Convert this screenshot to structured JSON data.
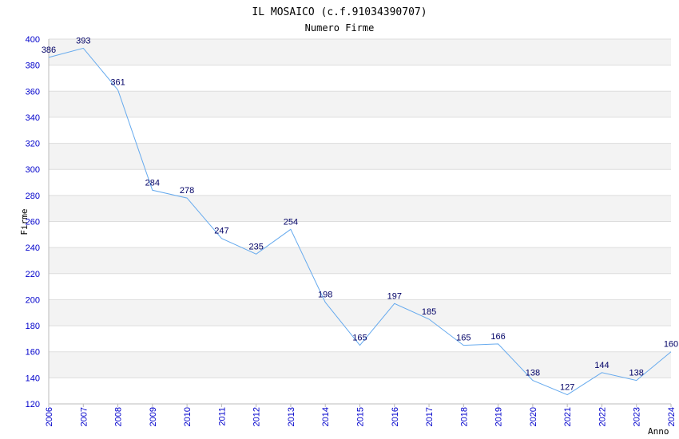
{
  "chart_data": {
    "type": "line",
    "title": "IL MOSAICO (c.f.91034390707)",
    "subtitle": "Numero Firme",
    "xlabel": "Anno",
    "ylabel": "Firme",
    "x": [
      "2006",
      "2007",
      "2008",
      "2009",
      "2010",
      "2011",
      "2012",
      "2013",
      "2014",
      "2015",
      "2016",
      "2017",
      "2018",
      "2019",
      "2020",
      "2021",
      "2022",
      "2023",
      "2024"
    ],
    "series": [
      {
        "values": [
          386,
          393,
          361,
          284,
          278,
          247,
          235,
          254,
          198,
          165,
          197,
          185,
          165,
          166,
          138,
          127,
          144,
          138,
          160
        ]
      }
    ],
    "ylim": [
      120,
      400
    ],
    "ytick_step": 20,
    "grid": true,
    "legend": "none",
    "colors": {
      "line": "#66aaee",
      "tick_text": "#0000cc",
      "label_text": "#000066",
      "band": "#f3f3f3",
      "grid": "#dddddd",
      "axis": "#bbbbbb"
    }
  }
}
